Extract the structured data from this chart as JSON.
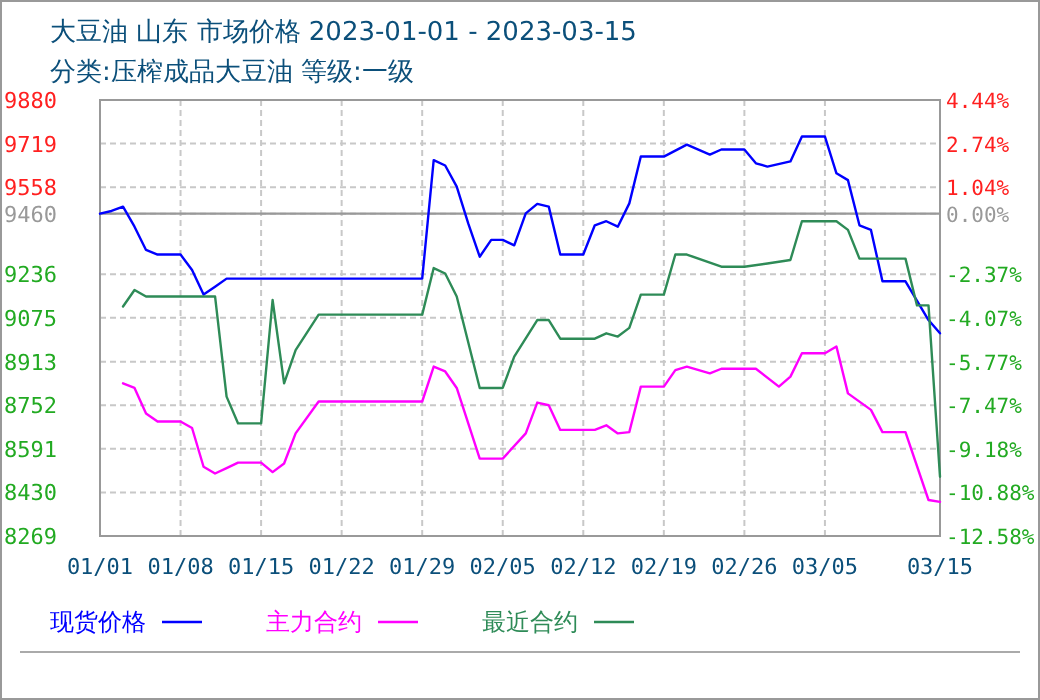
{
  "chart_data": {
    "type": "line",
    "title": "大豆油 山东 市场价格 2023-01-01 - 2023-03-15",
    "subtitle": "分类:压榨成品大豆油 等级:一级",
    "xlim": [
      "2023-01-01",
      "2023-03-15"
    ],
    "xticks": [
      {
        "value": "2023-01-01",
        "label": "01/01"
      },
      {
        "value": "2023-01-08",
        "label": "01/08"
      },
      {
        "value": "2023-01-15",
        "label": "01/15"
      },
      {
        "value": "2023-01-22",
        "label": "01/22"
      },
      {
        "value": "2023-01-29",
        "label": "01/29"
      },
      {
        "value": "2023-02-05",
        "label": "02/05"
      },
      {
        "value": "2023-02-12",
        "label": "02/12"
      },
      {
        "value": "2023-02-19",
        "label": "02/19"
      },
      {
        "value": "2023-02-26",
        "label": "02/26"
      },
      {
        "value": "2023-03-05",
        "label": "03/05"
      },
      {
        "value": "2023-03-15",
        "label": "03/15"
      }
    ],
    "ylim": [
      8269,
      9880
    ],
    "yticks": [
      9880,
      9719,
      9558,
      9460,
      9236,
      9075,
      8913,
      8752,
      8591,
      8430,
      8269
    ],
    "y2lim": [
      -12.58,
      4.44
    ],
    "y2ticks": [
      {
        "value": 4.44,
        "label": "4.44%"
      },
      {
        "value": 2.74,
        "label": "2.74%"
      },
      {
        "value": 1.04,
        "label": "1.04%"
      },
      {
        "value": 0,
        "label": "0.00%"
      },
      {
        "value": -2.37,
        "label": "-2.37%"
      },
      {
        "value": -4.07,
        "label": "-4.07%"
      },
      {
        "value": -5.77,
        "label": "-5.77%"
      },
      {
        "value": -7.47,
        "label": "-7.47%"
      },
      {
        "value": -9.18,
        "label": "-9.18%"
      },
      {
        "value": -10.88,
        "label": "-10.88%"
      },
      {
        "value": -12.58,
        "label": "-12.58%"
      }
    ],
    "ref_lines": [
      {
        "axis": "y",
        "value": 9460,
        "color": "#999999"
      }
    ],
    "grid": true,
    "legend": "bottom",
    "series": [
      {
        "name": "现货价格",
        "color": "#0000ff",
        "x": [
          "2023-01-01",
          "2023-01-02",
          "2023-01-03",
          "2023-01-04",
          "2023-01-05",
          "2023-01-06",
          "2023-01-08",
          "2023-01-09",
          "2023-01-10",
          "2023-01-11",
          "2023-01-12",
          "2023-01-29",
          "2023-01-30",
          "2023-01-31",
          "2023-02-01",
          "2023-02-02",
          "2023-02-03",
          "2023-02-04",
          "2023-02-05",
          "2023-02-06",
          "2023-02-07",
          "2023-02-08",
          "2023-02-09",
          "2023-02-10",
          "2023-02-12",
          "2023-02-13",
          "2023-02-14",
          "2023-02-15",
          "2023-02-16",
          "2023-02-17",
          "2023-02-19",
          "2023-02-21",
          "2023-02-23",
          "2023-02-24",
          "2023-02-26",
          "2023-02-27",
          "2023-02-28",
          "2023-03-02",
          "2023-03-03",
          "2023-03-05",
          "2023-03-06",
          "2023-03-07",
          "2023-03-08",
          "2023-03-09",
          "2023-03-10",
          "2023-03-12",
          "2023-03-14",
          "2023-03-15"
        ],
        "values": [
          9460,
          9470,
          9486,
          9412,
          9326,
          9309,
          9309,
          9252,
          9161,
          9190,
          9220,
          9220,
          9658,
          9638,
          9560,
          9424,
          9301,
          9363,
          9363,
          9343,
          9461,
          9496,
          9486,
          9309,
          9309,
          9417,
          9432,
          9412,
          9498,
          9671,
          9671,
          9715,
          9678,
          9697,
          9697,
          9646,
          9634,
          9653,
          9745,
          9745,
          9609,
          9584,
          9417,
          9400,
          9210,
          9210,
          9067,
          9018
        ]
      },
      {
        "name": "主力合约",
        "color": "#ff00ff",
        "x": [
          "2023-01-03",
          "2023-01-04",
          "2023-01-05",
          "2023-01-06",
          "2023-01-08",
          "2023-01-09",
          "2023-01-10",
          "2023-01-11",
          "2023-01-12",
          "2023-01-13",
          "2023-01-15",
          "2023-01-16",
          "2023-01-17",
          "2023-01-18",
          "2023-01-20",
          "2023-01-29",
          "2023-01-30",
          "2023-01-31",
          "2023-02-01",
          "2023-02-03",
          "2023-02-05",
          "2023-02-07",
          "2023-02-08",
          "2023-02-09",
          "2023-02-10",
          "2023-02-13",
          "2023-02-14",
          "2023-02-15",
          "2023-02-16",
          "2023-02-17",
          "2023-02-19",
          "2023-02-20",
          "2023-02-21",
          "2023-02-23",
          "2023-02-24",
          "2023-02-27",
          "2023-03-01",
          "2023-03-02",
          "2023-03-03",
          "2023-03-05",
          "2023-03-06",
          "2023-03-07",
          "2023-03-09",
          "2023-03-10",
          "2023-03-12",
          "2023-03-14",
          "2023-03-15"
        ],
        "values": [
          8833,
          8816,
          8722,
          8692,
          8692,
          8668,
          8525,
          8500,
          8520,
          8540,
          8540,
          8505,
          8537,
          8648,
          8766,
          8766,
          8895,
          8877,
          8816,
          8555,
          8555,
          8648,
          8762,
          8752,
          8661,
          8661,
          8678,
          8648,
          8653,
          8821,
          8821,
          8882,
          8895,
          8870,
          8887,
          8887,
          8821,
          8858,
          8944,
          8944,
          8969,
          8796,
          8735,
          8653,
          8653,
          8402,
          8395
        ]
      },
      {
        "name": "最近合约",
        "color": "#2e8b57",
        "x": [
          "2023-01-03",
          "2023-01-04",
          "2023-01-05",
          "2023-01-11",
          "2023-01-12",
          "2023-01-13",
          "2023-01-15",
          "2023-01-16",
          "2023-01-17",
          "2023-01-18",
          "2023-01-20",
          "2023-01-29",
          "2023-01-30",
          "2023-01-31",
          "2023-02-01",
          "2023-02-03",
          "2023-02-05",
          "2023-02-06",
          "2023-02-08",
          "2023-02-09",
          "2023-02-10",
          "2023-02-13",
          "2023-02-14",
          "2023-02-15",
          "2023-02-16",
          "2023-02-17",
          "2023-02-19",
          "2023-02-20",
          "2023-02-21",
          "2023-02-24",
          "2023-02-26",
          "2023-02-28",
          "2023-03-02",
          "2023-03-03",
          "2023-03-06",
          "2023-03-07",
          "2023-03-08",
          "2023-03-12",
          "2023-03-13",
          "2023-03-14",
          "2023-03-15"
        ],
        "values": [
          9117,
          9178,
          9154,
          9154,
          8784,
          8685,
          8685,
          9141,
          8833,
          8956,
          9087,
          9087,
          9259,
          9239,
          9154,
          8816,
          8816,
          8932,
          9067,
          9067,
          8998,
          8998,
          9018,
          9006,
          9038,
          9161,
          9161,
          9309,
          9309,
          9264,
          9264,
          9276,
          9289,
          9432,
          9432,
          9400,
          9294,
          9294,
          9121,
          9121,
          8488
        ]
      }
    ]
  }
}
